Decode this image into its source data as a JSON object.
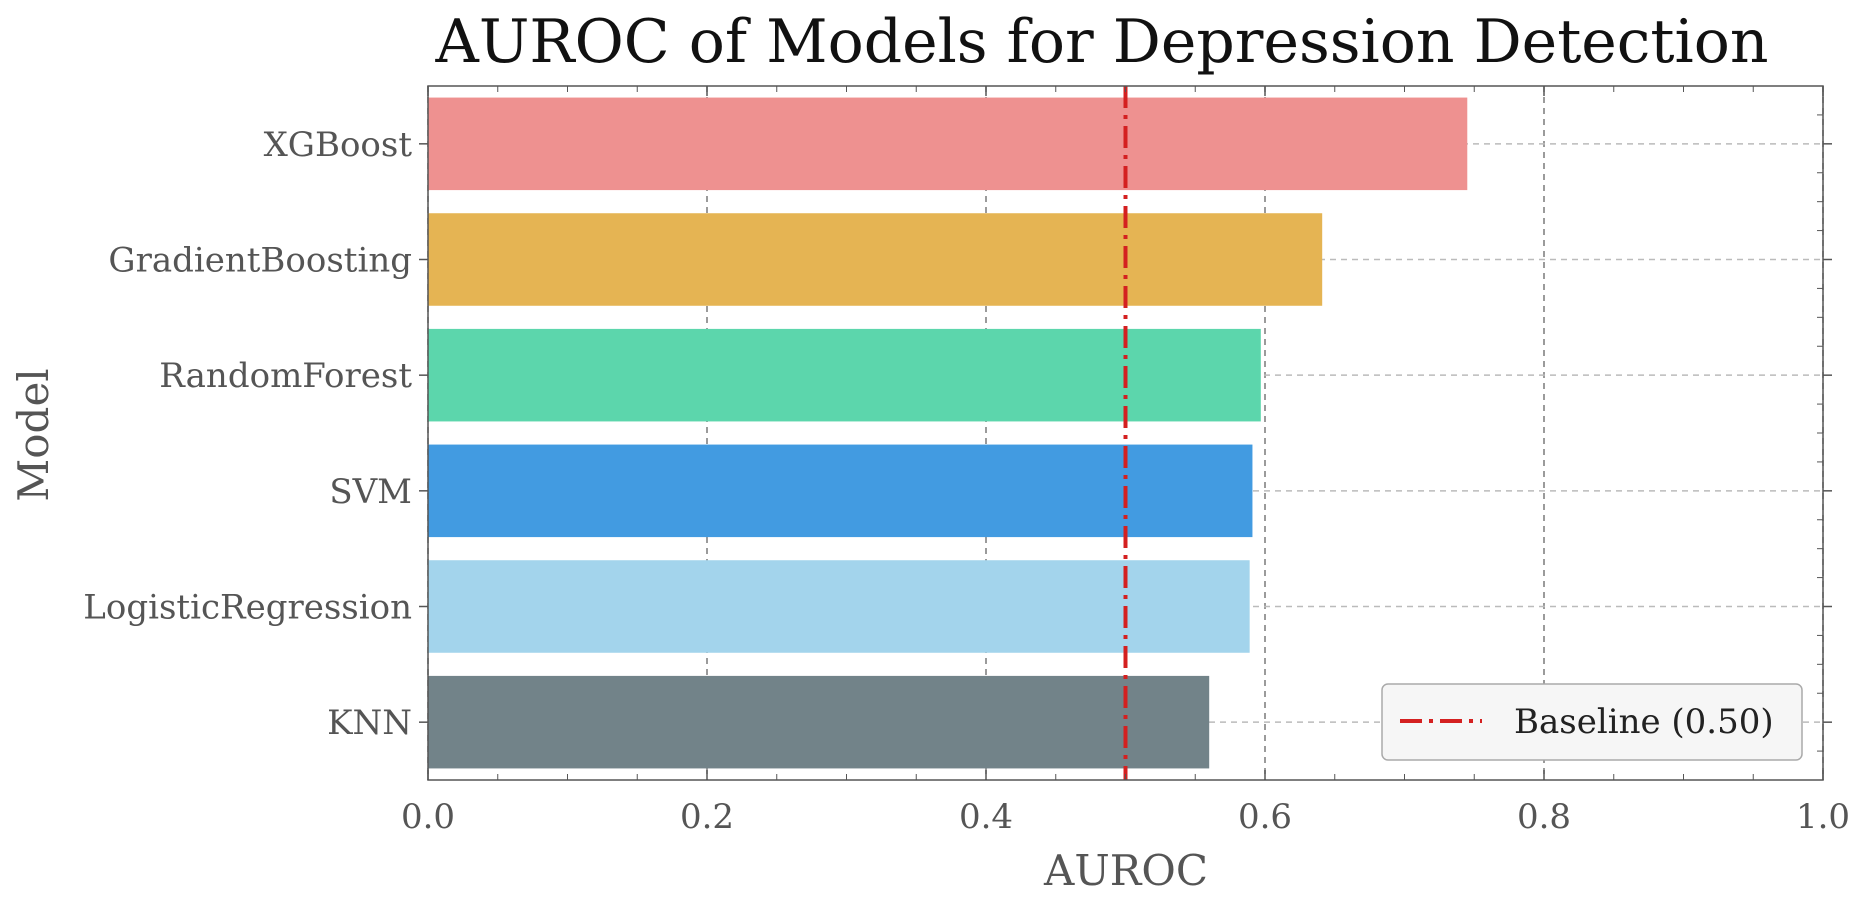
{
  "chart_data": {
    "type": "bar",
    "orientation": "horizontal",
    "title": "AUROC of Models for Depression Detection",
    "xlabel": "AUROC",
    "ylabel": "Model",
    "xlim": [
      0.0,
      1.0
    ],
    "xticks": [
      "0.0",
      "0.2",
      "0.4",
      "0.6",
      "0.8",
      "1.0"
    ],
    "categories": [
      "XGBoost",
      "GradientBoosting",
      "RandomForest",
      "SVM",
      "LogisticRegression",
      "KNN"
    ],
    "values": [
      0.745,
      0.641,
      0.597,
      0.591,
      0.589,
      0.56
    ],
    "colors": [
      "#ee9190",
      "#e5b453",
      "#5cd6ac",
      "#429be1",
      "#a3d4ec",
      "#728389"
    ],
    "baseline": {
      "label": "Baseline (0.50)",
      "value": 0.5,
      "color": "#d42020",
      "style": "dash-dot"
    },
    "grid": true,
    "legend_position": "bottom-right"
  }
}
